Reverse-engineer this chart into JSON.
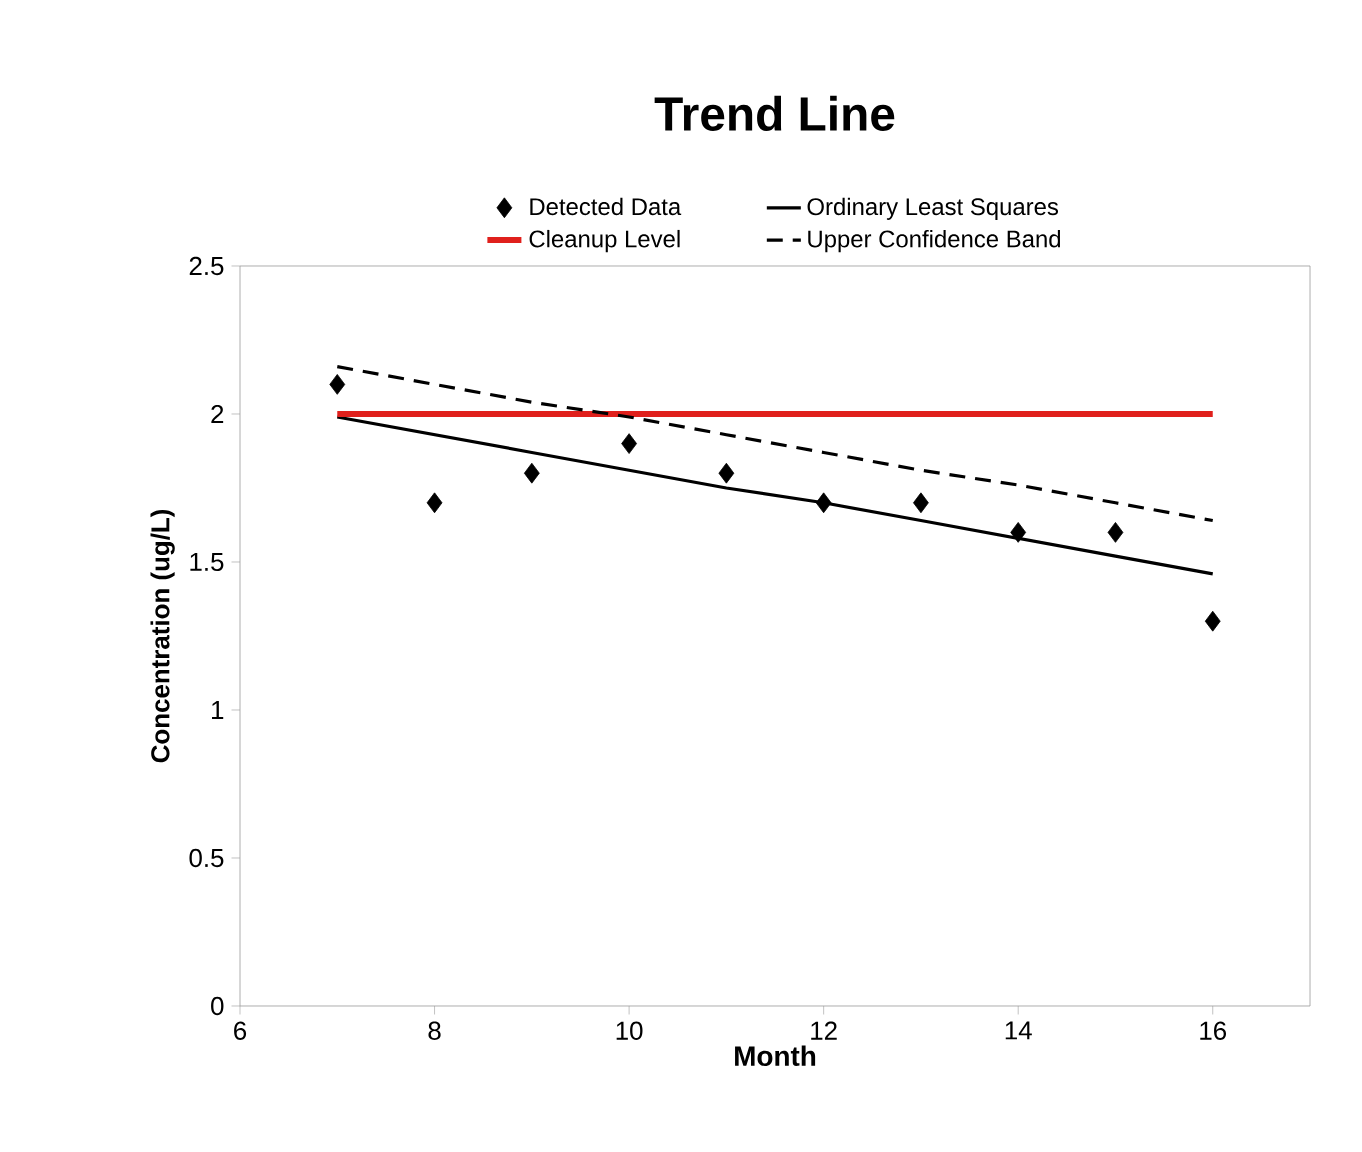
{
  "chart_data": {
    "type": "scatter",
    "title": "Trend Line",
    "xlabel": "Month",
    "ylabel": "Concentration (ug/L)",
    "x": [
      7,
      8,
      9,
      10,
      11,
      12,
      13,
      14,
      15,
      16
    ],
    "series": [
      {
        "name": "Detected Data",
        "marker": "diamond",
        "color": "#000000",
        "values": [
          2.1,
          1.7,
          1.8,
          1.9,
          1.8,
          1.7,
          1.7,
          1.6,
          1.6,
          1.3
        ]
      },
      {
        "name": "Ordinary Least Squares",
        "type": "line",
        "line_style": "solid",
        "color": "#000000",
        "values": [
          1.99,
          1.93,
          1.87,
          1.81,
          1.75,
          1.7,
          1.64,
          1.58,
          1.52,
          1.46
        ]
      },
      {
        "name": "Cleanup Level",
        "type": "line",
        "line_style": "solid",
        "color": "#e0201c",
        "values": [
          2,
          2,
          2,
          2,
          2,
          2,
          2,
          2,
          2,
          2
        ]
      },
      {
        "name": "Upper Confidence Band",
        "type": "line",
        "line_style": "dashed",
        "color": "#000000",
        "values": [
          2.16,
          2.1,
          2.04,
          1.99,
          1.93,
          1.87,
          1.81,
          1.76,
          1.7,
          1.64
        ]
      }
    ],
    "xlim": [
      6,
      17
    ],
    "xticks": [
      6,
      8,
      10,
      12,
      14,
      16
    ],
    "ylim": [
      0,
      2.5
    ],
    "yticks": [
      0,
      0.5,
      1,
      1.5,
      2,
      2.5
    ],
    "legend": "top",
    "grid": false
  }
}
